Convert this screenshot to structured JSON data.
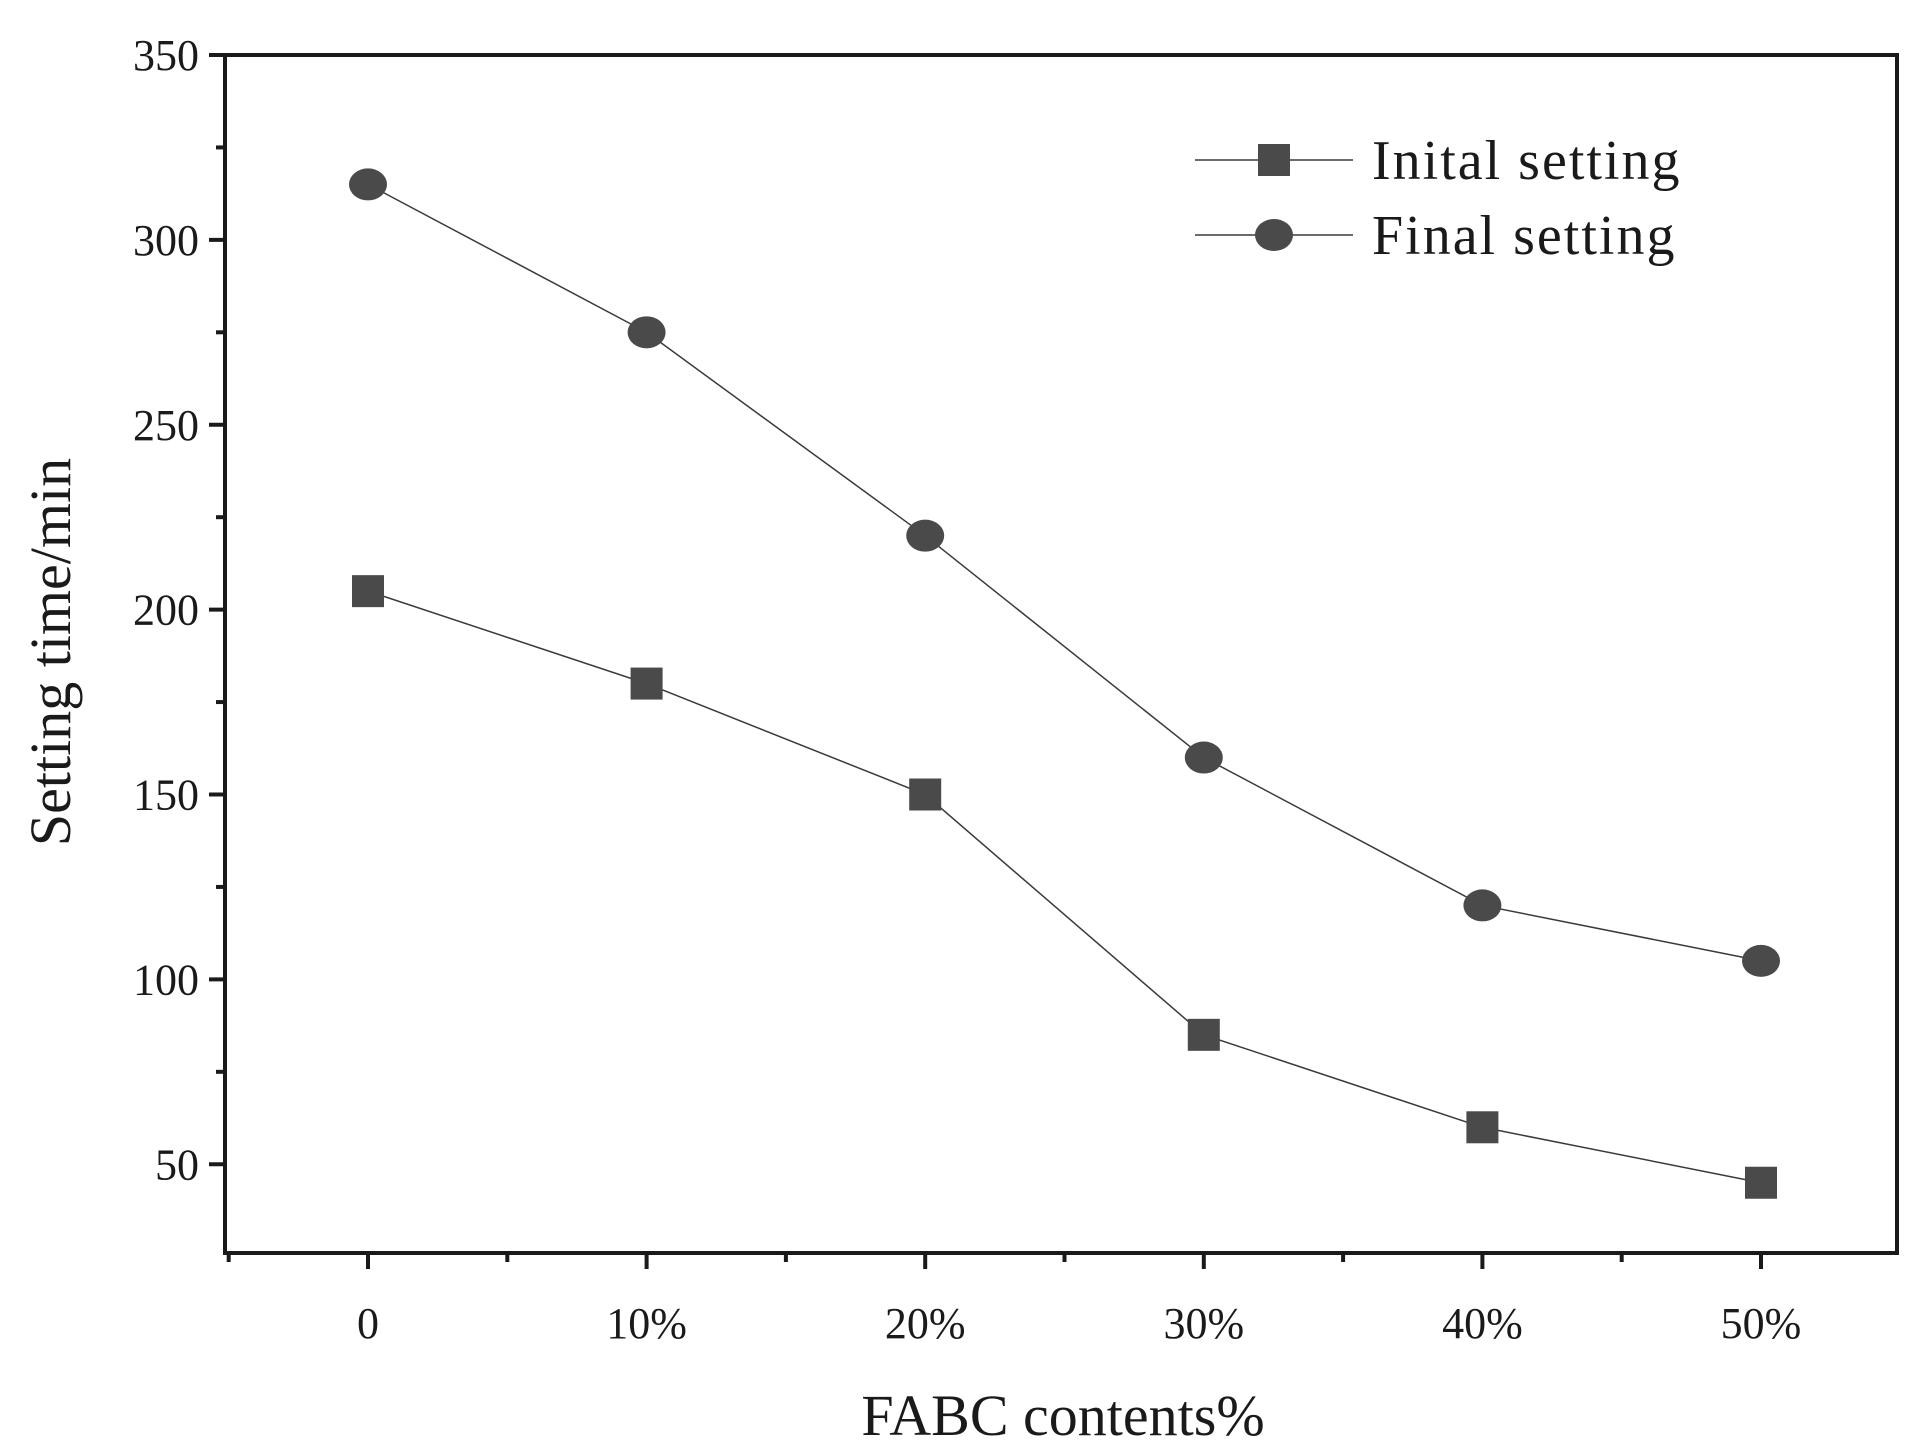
{
  "chart_data": {
    "type": "line",
    "categories": [
      "0",
      "10%",
      "20%",
      "30%",
      "40%",
      "50%"
    ],
    "xlabel": "FABC contents%",
    "ylabel": "Setting time/min",
    "ylim": [
      26,
      350
    ],
    "yticks": [
      50,
      100,
      150,
      200,
      250,
      300,
      350
    ],
    "grid": false,
    "legend_position": "top-right",
    "series": [
      {
        "name": "Inital setting",
        "marker": "square",
        "color": "#4a4a4a",
        "values": [
          205,
          180,
          150,
          85,
          60,
          45
        ]
      },
      {
        "name": "Final setting",
        "marker": "circle",
        "color": "#4a4a4a",
        "values": [
          315,
          275,
          220,
          160,
          120,
          105
        ]
      }
    ]
  }
}
